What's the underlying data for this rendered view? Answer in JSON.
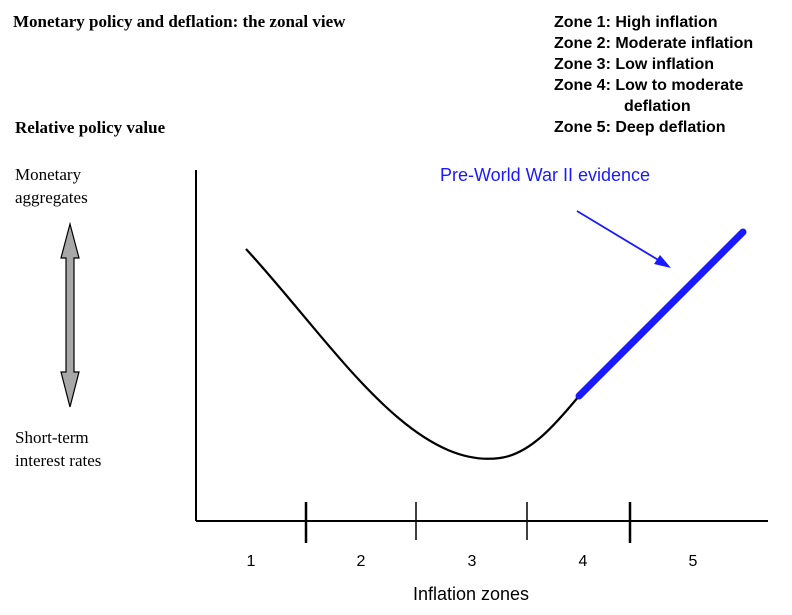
{
  "title": "Monetary policy and deflation: the zonal view",
  "y_axis": {
    "title": "Relative policy value",
    "top_label": [
      "Monetary",
      "aggregates"
    ],
    "bottom_label": [
      "Short-term",
      "interest rates"
    ]
  },
  "legend": [
    {
      "line1": "Zone 1: High inflation"
    },
    {
      "line1": "Zone 2: Moderate inflation"
    },
    {
      "line1": "Zone 3: Low inflation"
    },
    {
      "line1": "Zone 4: Low to moderate",
      "line2": "deflation"
    },
    {
      "line1": "Zone 5: Deep deflation"
    }
  ],
  "x_axis": {
    "title": "Inflation zones",
    "zones": [
      "1",
      "2",
      "3",
      "4",
      "5"
    ]
  },
  "annotation": {
    "text": "Pre-World War II evidence",
    "color": "#1a1aff"
  },
  "colors": {
    "curve": "#000000",
    "highlight": "#1a1aff",
    "arrow_fill": "#a8a8a8"
  }
}
